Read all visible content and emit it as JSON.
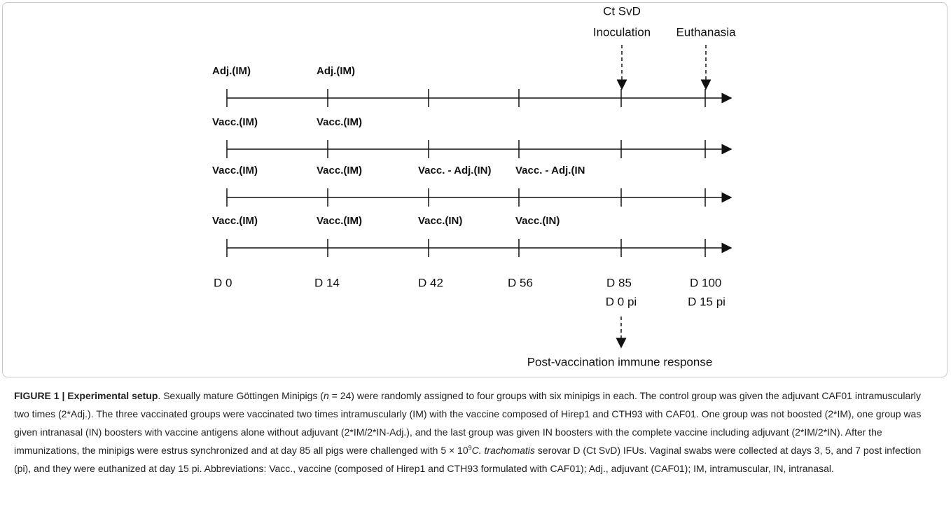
{
  "figure": {
    "top_labels": {
      "inoculation": [
        "Ct SvD",
        "Inoculation"
      ],
      "euthanasia": "Euthanasia"
    },
    "rows": [
      {
        "labels": [
          "Adj.(IM)",
          "Adj.(IM)"
        ]
      },
      {
        "labels": [
          "Vacc.(IM)",
          "Vacc.(IM)"
        ]
      },
      {
        "labels": [
          "Vacc.(IM)",
          "Vacc.(IM)",
          "Vacc. - Adj.(IN)",
          "Vacc. - Adj.(IN"
        ]
      },
      {
        "labels": [
          "Vacc.(IM)",
          "Vacc.(IM)",
          "Vacc.(IN)",
          "Vacc.(IN)"
        ]
      }
    ],
    "days": [
      "D 0",
      "D 14",
      "D 42",
      "D 56",
      "D 85",
      "D 100"
    ],
    "days_pi": [
      "D 0 pi",
      "D 15 pi"
    ],
    "bottom_label": "Post-vaccination immune response"
  },
  "caption": {
    "segments": [
      "FIGURE 1 | Experimental setup",
      ". Sexually mature Göttingen Minipigs (",
      "n",
      " = 24) were randomly assigned to four groups with six minipigs in each. The control group was given the adjuvant CAF01 intramuscularly two times (2*Adj.). The three vaccinated groups were vaccinated two times intramuscularly (IM) with the vaccine composed of Hirep1 and CTH93 with CAF01. One group was not boosted (2*IM), one group was given intranasal (IN) boosters with vaccine antigens alone without adjuvant (2*IM/2*IN-Adj.), and the last group was given IN boosters with the complete vaccine including adjuvant (2*IM/2*IN). After the immunizations, the minipigs were estrus synchronized and at day 85 all pigs were challenged with 5 × 10",
      "9",
      "C. trachomatis",
      " serovar D (Ct SvD) IFUs. Vaginal swabs were collected at days 3, 5, and 7 post infection (pi), and they were euthanized at day 15 pi. Abbreviations: Vacc., vaccine (composed of Hirep1 and CTH93 formulated with CAF01); Adj., adjuvant (CAF01); IM, intramuscular, IN, intranasal."
    ]
  }
}
